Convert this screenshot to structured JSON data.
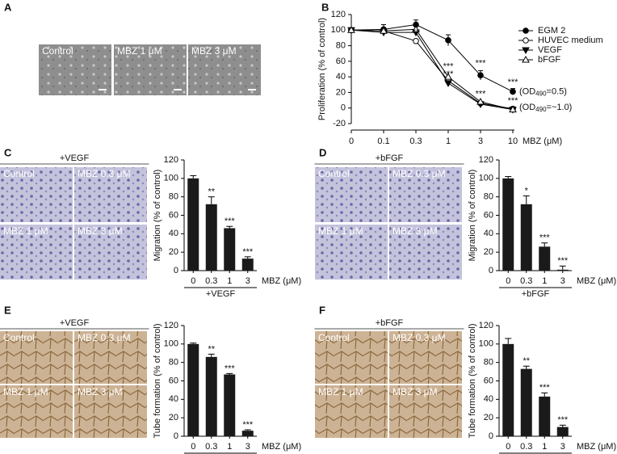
{
  "panels": [
    {
      "letter": "A",
      "images": [
        "Control",
        "MBZ 1 μM",
        "MBZ 3 μM"
      ]
    },
    {
      "letter": "B"
    },
    {
      "letter": "C",
      "header": "+VEGF",
      "images": [
        "Control",
        "MBZ 0.3 μM",
        "MBZ 1 μM",
        "MBZ 3 μM"
      ]
    },
    {
      "letter": "D",
      "header": "+bFGF",
      "images": [
        "Control",
        "MBZ 0.3 μM",
        "MBZ 1 μM",
        "MBZ 3 μM"
      ]
    },
    {
      "letter": "E",
      "header": "+VEGF",
      "images": [
        "Control",
        "MBZ 0.3 μM",
        "MBZ 1 μM",
        "MBZ 3 μM"
      ]
    },
    {
      "letter": "F",
      "header": "+bFGF",
      "images": [
        "Control",
        "MBZ 0.3 μM",
        "MBZ 1 μM",
        "MBZ 3 μM"
      ]
    }
  ],
  "chart_data": [
    {
      "type": "line",
      "ylabel": "Proliferation (% of control)",
      "xlabel": "MBZ (μM)",
      "categories": [
        "0",
        "0.1",
        "0.3",
        "1",
        "3",
        "10"
      ],
      "ylim": [
        -20,
        120
      ],
      "yticks": [
        -20,
        0,
        20,
        40,
        60,
        80,
        100,
        120
      ],
      "series": [
        {
          "name": "EGM 2",
          "color": "#000",
          "marker": "circle",
          "values": [
            100,
            101,
            107,
            87,
            42,
            21
          ],
          "errors": [
            3,
            6,
            6,
            7,
            6,
            4
          ]
        },
        {
          "name": "HUVEC medium",
          "color": "#000",
          "marker": "circle-open",
          "values": [
            100,
            99,
            86,
            35,
            6,
            -1
          ]
        },
        {
          "name": "VEGF",
          "color": "#000",
          "marker": "triangle-down",
          "values": [
            100,
            97,
            97,
            32,
            5,
            -2
          ]
        },
        {
          "name": "bFGF",
          "color": "#000",
          "marker": "triangle-up-open",
          "values": [
            100,
            99,
            101,
            40,
            8,
            -2
          ]
        }
      ],
      "annotations": [
        {
          "index": 2,
          "y": 97,
          "text": "**"
        },
        {
          "index": 3,
          "y": 53,
          "text": "***"
        },
        {
          "index": 3,
          "y": 43,
          "text": "***"
        },
        {
          "index": 4,
          "y": 57,
          "text": "***"
        },
        {
          "index": 4,
          "y": 18,
          "text": "***"
        },
        {
          "index": 5,
          "y": 33,
          "text": "***"
        },
        {
          "index": 5,
          "y": 9,
          "text": "***"
        }
      ],
      "od_labels": [
        {
          "y": 21,
          "pre": "(OD",
          "sub": "490",
          "post": "=0.5)"
        },
        {
          "y": 1,
          "pre": "(OD",
          "sub": "490",
          "post": "=~1.0)"
        }
      ]
    },
    {
      "type": "bar",
      "ylabel": "Migration (% of control)",
      "xlabel": "MBZ (μM)",
      "group": "+VEGF",
      "color": "#1a1a1a",
      "categories": [
        "0",
        "0.3",
        "1",
        "3"
      ],
      "values": [
        100,
        72,
        46,
        13
      ],
      "errors": [
        3,
        8,
        2,
        2
      ],
      "ylim": [
        0,
        120
      ],
      "yticks": [
        0,
        20,
        40,
        60,
        80,
        100,
        120
      ],
      "stars": [
        {
          "index": 1,
          "text": "**"
        },
        {
          "index": 2,
          "text": "***"
        },
        {
          "index": 3,
          "text": "***"
        }
      ]
    },
    {
      "type": "bar",
      "ylabel": "Migration (% of control)",
      "xlabel": "MBZ (μM)",
      "group": "+bFGF",
      "color": "#1a1a1a",
      "categories": [
        "0",
        "0.3",
        "1",
        "3"
      ],
      "values": [
        100,
        72,
        26,
        1
      ],
      "errors": [
        2,
        9,
        4,
        4
      ],
      "ylim": [
        0,
        120
      ],
      "yticks": [
        0,
        20,
        40,
        60,
        80,
        100,
        120
      ],
      "stars": [
        {
          "index": 1,
          "text": "*"
        },
        {
          "index": 2,
          "text": "***"
        },
        {
          "index": 3,
          "text": "***"
        }
      ]
    },
    {
      "type": "bar",
      "ylabel": "Tube formation (% of control)",
      "xlabel": "MBZ (μM)",
      "group": "+VEGF",
      "color": "#1a1a1a",
      "categories": [
        "0",
        "0.3",
        "1",
        "3"
      ],
      "values": [
        100,
        86,
        67,
        6
      ],
      "errors": [
        1,
        3,
        1,
        1
      ],
      "ylim": [
        0,
        120
      ],
      "yticks": [
        0,
        20,
        40,
        60,
        80,
        100,
        120
      ],
      "stars": [
        {
          "index": 1,
          "text": "**"
        },
        {
          "index": 2,
          "text": "***"
        },
        {
          "index": 3,
          "text": "***"
        }
      ]
    },
    {
      "type": "bar",
      "ylabel": "Tube formation (% of control)",
      "xlabel": "MBZ (μM)",
      "group": "+bFGF",
      "color": "#1a1a1a",
      "categories": [
        "0",
        "0.3",
        "1",
        "3"
      ],
      "values": [
        100,
        73,
        43,
        10
      ],
      "errors": [
        6,
        3,
        4,
        2
      ],
      "ylim": [
        0,
        120
      ],
      "yticks": [
        0,
        20,
        40,
        60,
        80,
        100,
        120
      ],
      "stars": [
        {
          "index": 1,
          "text": "**"
        },
        {
          "index": 2,
          "text": "***"
        },
        {
          "index": 3,
          "text": "***"
        }
      ]
    }
  ]
}
